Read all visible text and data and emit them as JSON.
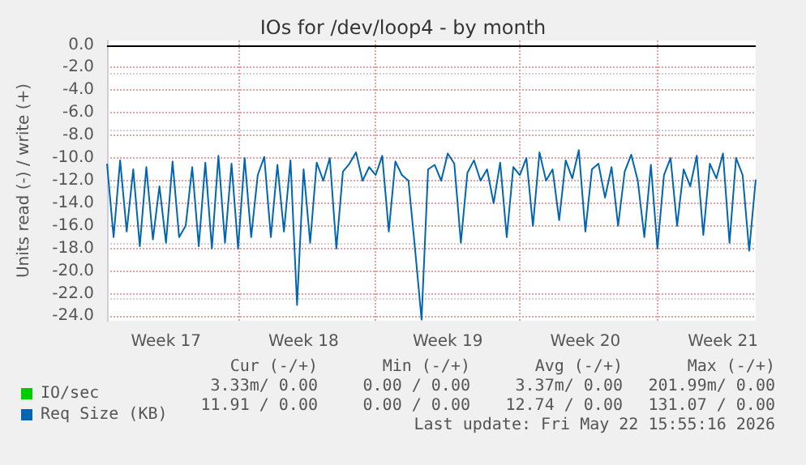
{
  "chart_data": {
    "type": "line",
    "title": "IOs for /dev/loop4 - by month",
    "ylabel": "Units read (-) / write (+)",
    "categories": [
      null,
      null,
      null,
      null,
      null,
      null,
      null,
      null,
      null,
      "Week 17",
      null,
      null,
      null,
      null,
      null,
      null,
      null,
      null,
      null,
      null,
      null,
      null,
      null,
      null,
      null,
      null,
      null,
      null,
      null,
      null,
      "Week 18",
      null,
      null,
      null,
      null,
      null,
      null,
      null,
      null,
      null,
      null,
      null,
      null,
      null,
      null,
      null,
      null,
      null,
      null,
      null,
      null,
      null,
      "Week 19",
      null,
      null,
      null,
      null,
      null,
      null,
      null,
      null,
      null,
      null,
      null,
      null,
      null,
      null,
      null,
      null,
      null,
      null,
      null,
      null,
      "Week 20",
      null,
      null,
      null,
      null,
      null,
      null,
      null,
      null,
      null,
      null,
      null,
      null,
      null,
      null,
      null,
      null,
      null,
      null,
      null,
      null,
      "Week 21",
      null,
      null,
      null,
      null,
      null
    ],
    "ylim": [
      -24.4,
      0.4
    ],
    "yticks": [
      {
        "value": -24,
        "label": "-24.0"
      },
      {
        "value": -22,
        "label": "-22.0"
      },
      {
        "value": -20,
        "label": "-20.0"
      },
      {
        "value": -18,
        "label": "-18.0"
      },
      {
        "value": -16,
        "label": "-16.0"
      },
      {
        "value": -14,
        "label": "-14.0"
      },
      {
        "value": -12,
        "label": "-12.0"
      },
      {
        "value": -10,
        "label": "-10.0"
      },
      {
        "value": -8,
        "label": "-8.0"
      },
      {
        "value": -6,
        "label": "-6.0"
      },
      {
        "value": -4,
        "label": "-4.0"
      },
      {
        "value": -2,
        "label": "-2.0"
      },
      {
        "value": 0,
        "label": "0.0"
      }
    ],
    "grid": true,
    "legend": "bottom left",
    "marker": "none",
    "line_style": "solid",
    "ref_lines": [
      {
        "axis": "y",
        "value": 0,
        "label": null,
        "color": "#000000"
      }
    ],
    "series": [
      {
        "name": "IO/sec",
        "color": "#00cc00",
        "values": [
          null,
          null,
          null,
          null,
          null,
          null,
          null,
          null,
          null,
          null,
          null,
          null,
          null,
          null,
          null,
          null,
          null,
          null,
          null,
          null,
          null,
          null,
          null,
          null,
          null,
          null,
          null,
          null,
          null,
          null,
          null,
          null,
          null,
          null,
          null,
          null,
          null,
          null,
          null,
          null,
          null,
          null,
          null,
          null,
          null,
          null,
          null,
          null,
          null,
          null,
          null,
          null,
          null,
          null,
          null,
          null,
          null,
          null,
          null,
          null,
          null,
          null,
          null,
          null,
          null,
          null,
          null,
          null,
          null,
          null,
          null,
          null,
          null,
          null,
          null,
          null,
          null,
          null,
          null,
          null,
          null,
          null,
          null,
          null,
          null,
          null,
          null,
          null,
          null,
          null,
          null,
          null,
          null,
          null,
          null,
          null,
          null,
          null,
          null,
          null
        ]
      },
      {
        "name": "Req Size (KB)",
        "color": "#0066b3",
        "values": [
          -10.5,
          -17,
          -10.2,
          -16.5,
          -11,
          -17.8,
          -10.8,
          -17.2,
          -12.5,
          -17.5,
          -10.3,
          -17,
          -16,
          -10.8,
          -17.8,
          -10.4,
          -18,
          -9.8,
          -17.5,
          -10.5,
          -18,
          -10,
          -17,
          -11.5,
          -9.9,
          -17,
          -10.6,
          -16.5,
          -10.2,
          -23,
          -11,
          -17.5,
          -10.4,
          -12,
          -10,
          -18,
          -11.2,
          -10.5,
          -9.5,
          -12,
          -10.8,
          -11.5,
          -9.8,
          -16.5,
          -10.3,
          -11.5,
          -12,
          -18,
          -24.3,
          -11,
          -10.6,
          -12,
          -9.6,
          -10.5,
          -17.5,
          -11.3,
          -10.2,
          -12,
          -11,
          -14,
          -10.4,
          -17,
          -10.8,
          -11.5,
          -10,
          -16,
          -9.5,
          -12,
          -11,
          -15.5,
          -10.2,
          -11.8,
          -9.3,
          -16.5,
          -11,
          -10.5,
          -13.5,
          -10.8,
          -16,
          -11.2,
          -9.7,
          -12,
          -17,
          -10.6,
          -18,
          -11.5,
          -10,
          -16,
          -11,
          -12.5,
          -9.8,
          -16.8,
          -10.5,
          -11.8,
          -9.6,
          -17.5,
          -10,
          -11.5,
          -18.2,
          -11.9
        ]
      }
    ],
    "annotations": [
      "Cur (-/+)",
      "Min (-/+)",
      "Avg (-/+)",
      "Max (-/+)",
      "3.33m/ 0.00",
      "0.00 / 0.00",
      "3.37m/ 0.00",
      "201.99m/ 0.00",
      "11.91 / 0.00",
      "0.00 / 0.00",
      "12.74 / 0.00",
      "131.07 / 0.00",
      "Last update: Fri May 22 15:55:16 2026"
    ]
  }
}
